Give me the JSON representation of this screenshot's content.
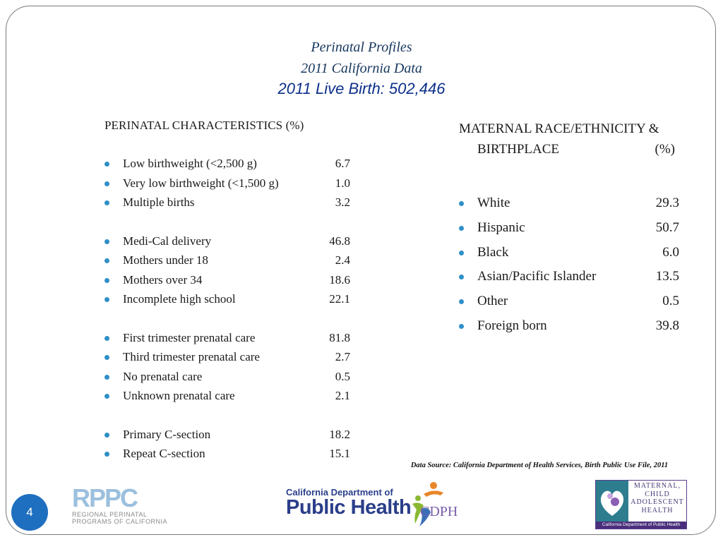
{
  "title": {
    "line1": "Perinatal Profiles",
    "line2": "2011 California Data",
    "line3": "2011 Live Birth: 502,446"
  },
  "left_section": {
    "header": "PERINATAL CHARACTERISTICS (%)",
    "groups": [
      [
        {
          "label": "Low birthweight (<2,500 g)",
          "value": "6.7"
        },
        {
          "label": "Very low birthweight (<1,500 g)",
          "value": "1.0"
        },
        {
          "label": "Multiple births",
          "value": "3.2"
        }
      ],
      [
        {
          "label": "Medi-Cal delivery",
          "value": "46.8"
        },
        {
          "label": "Mothers under 18",
          "value": "2.4"
        },
        {
          "label": "Mothers over 34",
          "value": "18.6"
        },
        {
          "label": "Incomplete high school",
          "value": "22.1"
        }
      ],
      [
        {
          "label": "First trimester prenatal care",
          "value": "81.8"
        },
        {
          "label": "Third trimester prenatal care",
          "value": "2.7"
        },
        {
          "label": "No prenatal care",
          "value": "0.5"
        },
        {
          "label": "Unknown prenatal care",
          "value": "2.1"
        }
      ],
      [
        {
          "label": "Primary C-section",
          "value": "18.2"
        },
        {
          "label": "Repeat C-section",
          "value": "15.1"
        }
      ]
    ]
  },
  "right_section": {
    "header_line1": "MATERNAL RACE/ETHNICITY &",
    "header_line2": "BIRTHPLACE",
    "header_unit": "(%)",
    "items": [
      {
        "label": "White",
        "value": "29.3"
      },
      {
        "label": "Hispanic",
        "value": "50.7"
      },
      {
        "label": "Black",
        "value": "6.0"
      },
      {
        "label": "Asian/Pacific Islander",
        "value": "13.5"
      },
      {
        "label": "Other",
        "value": "0.5"
      },
      {
        "label": "Foreign born",
        "value": "39.8"
      }
    ]
  },
  "data_source": "Data Source: California Department of Health Services, Birth Public Use File, 2011",
  "page_number": "4",
  "logos": {
    "rppc": {
      "letters": "RPPC",
      "line1": "REGIONAL PERINATAL",
      "line2": "PROGRAMS OF CALIFORNIA"
    },
    "cdph": {
      "line1": "California Department of",
      "line2": "Public Health",
      "mark": "CDPH"
    },
    "mcah": {
      "line1": "MATERNAL,",
      "line2": "CHILD",
      "line3": "ADOLESCENT",
      "line4": "HEALTH",
      "banner": "California Department of Public Health"
    }
  },
  "colors": {
    "bullet": "#2f8fc7",
    "title": "#17375e",
    "subtitle": "#0b2f8a",
    "page_badge": "#1f6fc0"
  }
}
